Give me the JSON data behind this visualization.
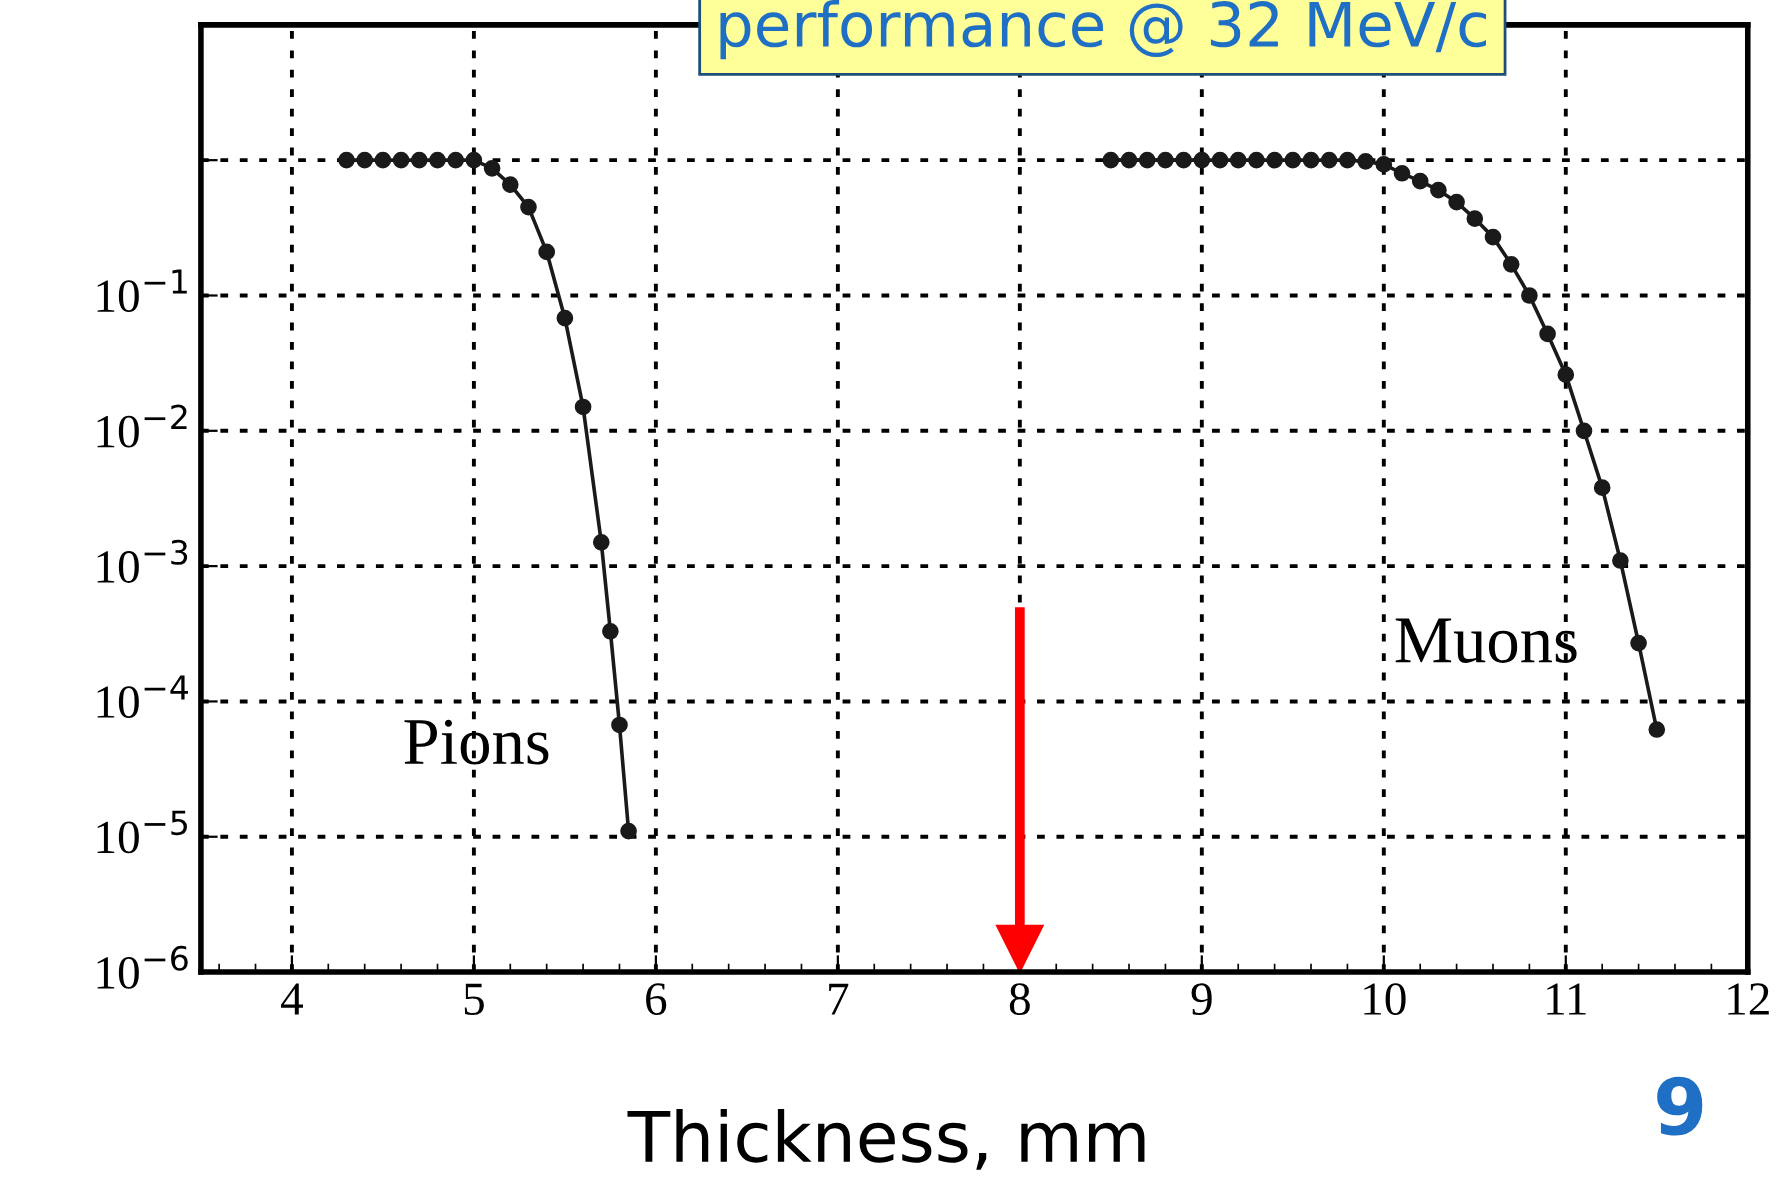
{
  "chart_data": {
    "type": "line",
    "title": "performance @ 32 MeV/c",
    "xlabel": "Thickness, mm",
    "series": [
      {
        "name": "Pions",
        "color": "#1a1a1a",
        "x": [
          4.3,
          4.4,
          4.5,
          4.6,
          4.7,
          4.8,
          4.9,
          5.0,
          5.1,
          5.2,
          5.3,
          5.4,
          5.5,
          5.6,
          5.7,
          5.75,
          5.8,
          5.85
        ],
        "values": [
          1,
          1,
          1,
          1,
          1,
          1,
          1,
          1,
          0.87,
          0.66,
          0.45,
          0.21,
          0.068,
          0.015,
          0.0015,
          0.00033,
          6.7e-05,
          1.1e-05
        ]
      },
      {
        "name": "Muons",
        "color": "#1a1a1a",
        "x": [
          8.5,
          8.6,
          8.7,
          8.8,
          8.9,
          9.0,
          9.1,
          9.2,
          9.3,
          9.4,
          9.5,
          9.6,
          9.7,
          9.8,
          9.9,
          10.0,
          10.1,
          10.2,
          10.3,
          10.4,
          10.5,
          10.6,
          10.7,
          10.8,
          10.9,
          11.0,
          11.1,
          11.2,
          11.3,
          11.4,
          11.5
        ],
        "values": [
          1,
          1,
          1,
          1,
          1,
          1,
          1,
          1,
          1,
          1,
          1,
          1,
          1,
          1,
          0.98,
          0.93,
          0.8,
          0.7,
          0.6,
          0.49,
          0.37,
          0.27,
          0.17,
          0.1,
          0.052,
          0.026,
          0.01,
          0.0038,
          0.0011,
          0.00027,
          6.2e-05
        ]
      }
    ],
    "annotations": [
      "9"
    ],
    "ref_lines": [
      {
        "axis": "x",
        "value": 8,
        "color": "#ff0000"
      }
    ],
    "log": "y",
    "xlim": [
      3.5,
      12
    ],
    "ylim": [
      1e-06,
      10
    ],
    "xticks": [
      4,
      5,
      6,
      7,
      8,
      9,
      10,
      11,
      12
    ],
    "yticks": [
      {
        "value": 1e-06,
        "label": "10$^{−6}$"
      },
      {
        "value": 1e-05,
        "label": "10$^{−5}$"
      },
      {
        "value": 0.0001,
        "label": "10$^{−4}$"
      },
      {
        "value": 0.001,
        "label": "10$^{−3}$"
      },
      {
        "value": 0.01,
        "label": "10$^{−2}$"
      },
      {
        "value": 0.1,
        "label": "10$^{−1}$"
      },
      {
        "value": 1,
        "label": null
      }
    ],
    "grid": true,
    "marker": "circle",
    "line_style": "solid",
    "legend": false
  }
}
